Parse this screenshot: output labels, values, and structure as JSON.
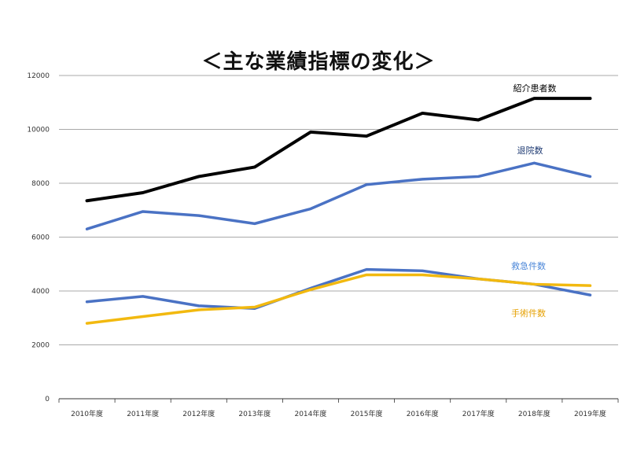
{
  "chart_data": {
    "type": "line",
    "title": "＜主な業績指標の変化＞",
    "xlabel": "",
    "ylabel": "",
    "ylim": [
      0,
      12000
    ],
    "yticks": [
      0,
      2000,
      4000,
      6000,
      8000,
      10000,
      12000
    ],
    "grid": "horizontal",
    "categories": [
      "2010年度",
      "2011年度",
      "2012年度",
      "2013年度",
      "2014年度",
      "2015年度",
      "2016年度",
      "2017年度",
      "2018年度",
      "2019年度"
    ],
    "series": [
      {
        "name": "紹介患者数",
        "color": "#000000",
        "values": [
          7350,
          7650,
          8250,
          8600,
          9900,
          9750,
          10600,
          10350,
          11150,
          11150
        ]
      },
      {
        "name": "退院数",
        "color": "#4a72c4",
        "values": [
          6300,
          6950,
          6800,
          6500,
          7050,
          7950,
          8150,
          8250,
          8750,
          8250
        ]
      },
      {
        "name": "救急件数",
        "color": "#4a72c4",
        "values": [
          3600,
          3800,
          3450,
          3350,
          4100,
          4800,
          4750,
          4450,
          4250,
          3850
        ]
      },
      {
        "name": "手術件数",
        "color": "#f2b90f",
        "values": [
          2800,
          3050,
          3300,
          3400,
          4050,
          4600,
          4600,
          4450,
          4250,
          4200
        ]
      }
    ],
    "series_label_colors": [
      "#000000",
      "#1f3b73",
      "#4a86d8",
      "#e6a000"
    ]
  }
}
